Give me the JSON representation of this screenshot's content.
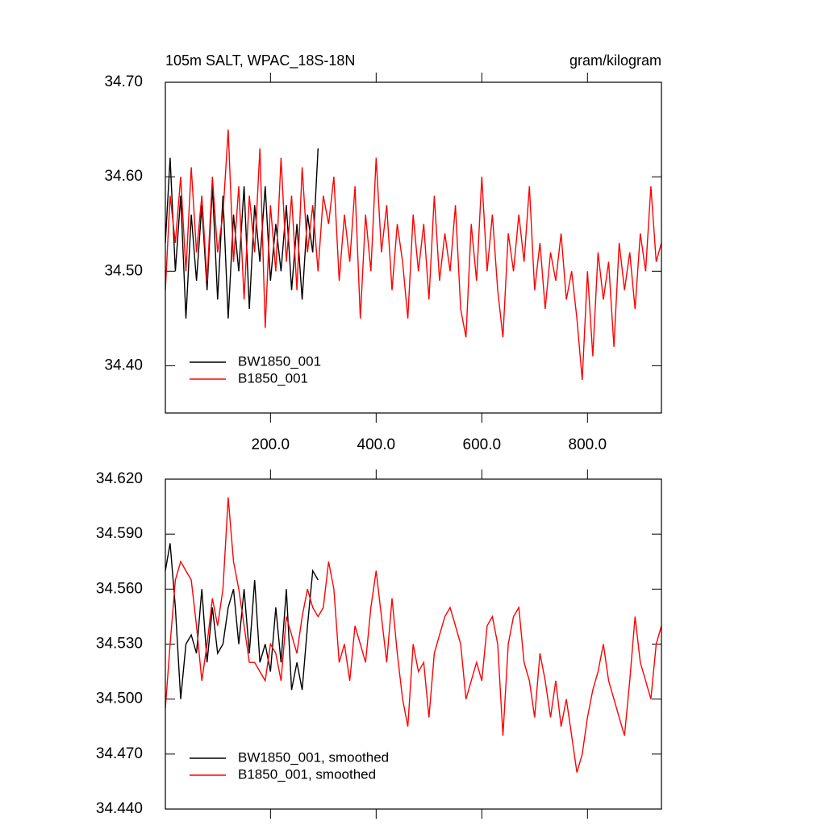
{
  "chart_data": [
    {
      "type": "line",
      "title": "105m SALT, WPAC_18S-18N",
      "units": "gram/kilogram",
      "xlim": [
        1,
        940
      ],
      "ylim": [
        34.35,
        34.7
      ],
      "xticks": [
        {
          "value": 200,
          "label": "200.0"
        },
        {
          "value": 400,
          "label": "400.0"
        },
        {
          "value": 600,
          "label": "600.0"
        },
        {
          "value": 800,
          "label": "800.0"
        }
      ],
      "yticks": [
        {
          "value": 34.4,
          "label": "34.40"
        },
        {
          "value": 34.5,
          "label": "34.50"
        },
        {
          "value": 34.6,
          "label": "34.60"
        },
        {
          "value": 34.7,
          "label": "34.70"
        }
      ],
      "legend": "lower left",
      "series": [
        {
          "name": "BW1850_001",
          "color": "#000000",
          "x": [
            1,
            10,
            20,
            30,
            40,
            50,
            60,
            70,
            80,
            90,
            100,
            110,
            120,
            130,
            140,
            150,
            160,
            170,
            180,
            190,
            200,
            210,
            220,
            230,
            240,
            250,
            260,
            270,
            280,
            290
          ],
          "values": [
            34.53,
            34.62,
            34.5,
            34.58,
            34.45,
            34.56,
            34.49,
            34.57,
            34.48,
            34.59,
            34.47,
            34.58,
            34.45,
            34.56,
            34.5,
            34.59,
            34.46,
            34.57,
            34.51,
            34.59,
            34.49,
            34.55,
            34.5,
            34.57,
            34.48,
            34.55,
            34.47,
            34.56,
            34.52,
            34.63
          ]
        },
        {
          "name": "B1850_001",
          "color": "#ff0000",
          "x": [
            1,
            10,
            20,
            30,
            40,
            50,
            60,
            70,
            80,
            90,
            100,
            110,
            120,
            130,
            140,
            150,
            160,
            170,
            180,
            190,
            200,
            210,
            220,
            230,
            240,
            250,
            260,
            270,
            280,
            290,
            300,
            310,
            320,
            330,
            340,
            350,
            360,
            370,
            380,
            390,
            400,
            410,
            420,
            430,
            440,
            450,
            460,
            470,
            480,
            490,
            500,
            510,
            520,
            530,
            540,
            550,
            560,
            570,
            580,
            590,
            600,
            610,
            620,
            630,
            640,
            650,
            660,
            670,
            680,
            690,
            700,
            710,
            720,
            730,
            740,
            750,
            760,
            770,
            780,
            790,
            800,
            810,
            820,
            830,
            840,
            850,
            860,
            870,
            880,
            890,
            900,
            910,
            920,
            930,
            940
          ],
          "values": [
            34.48,
            34.58,
            34.53,
            34.6,
            34.5,
            34.61,
            34.52,
            34.58,
            34.49,
            34.6,
            34.52,
            34.56,
            34.65,
            34.51,
            34.59,
            34.47,
            34.58,
            34.52,
            34.63,
            34.44,
            34.57,
            34.5,
            34.62,
            34.51,
            34.58,
            34.48,
            34.61,
            34.52,
            34.57,
            34.5,
            34.58,
            34.55,
            34.6,
            34.49,
            34.56,
            34.51,
            34.59,
            34.45,
            34.56,
            34.5,
            34.62,
            34.52,
            34.57,
            34.48,
            34.55,
            34.51,
            34.45,
            34.56,
            34.5,
            34.55,
            34.47,
            34.58,
            34.49,
            34.54,
            34.5,
            34.57,
            34.46,
            34.43,
            34.55,
            34.49,
            34.6,
            34.5,
            34.56,
            34.48,
            34.43,
            34.54,
            34.5,
            34.56,
            34.51,
            34.59,
            34.48,
            34.53,
            34.46,
            34.52,
            34.49,
            34.54,
            34.47,
            34.5,
            34.45,
            34.385,
            34.5,
            34.41,
            34.52,
            34.47,
            34.51,
            34.42,
            34.53,
            34.48,
            34.52,
            34.46,
            34.54,
            34.5,
            34.59,
            34.51,
            34.53
          ]
        }
      ]
    },
    {
      "type": "line",
      "xlim": [
        1,
        940
      ],
      "ylim": [
        34.44,
        34.62
      ],
      "xticks": [
        200,
        400,
        600,
        800
      ],
      "xtick_labels": false,
      "yticks": [
        {
          "value": 34.44,
          "label": "34.440"
        },
        {
          "value": 34.47,
          "label": "34.470"
        },
        {
          "value": 34.5,
          "label": "34.500"
        },
        {
          "value": 34.53,
          "label": "34.530"
        },
        {
          "value": 34.56,
          "label": "34.560"
        },
        {
          "value": 34.59,
          "label": "34.590"
        },
        {
          "value": 34.62,
          "label": "34.620"
        }
      ],
      "legend": "lower left",
      "series": [
        {
          "name": "BW1850_001, smoothed",
          "color": "#000000",
          "x": [
            1,
            10,
            20,
            30,
            40,
            50,
            60,
            70,
            80,
            90,
            100,
            110,
            120,
            130,
            140,
            150,
            160,
            170,
            180,
            190,
            200,
            210,
            220,
            230,
            240,
            250,
            260,
            270,
            280,
            290
          ],
          "values": [
            34.57,
            34.585,
            34.55,
            34.5,
            34.53,
            34.535,
            34.525,
            34.56,
            34.52,
            34.55,
            34.525,
            34.53,
            34.55,
            34.56,
            34.53,
            34.56,
            34.525,
            34.565,
            34.52,
            34.53,
            34.515,
            34.55,
            34.52,
            34.56,
            34.505,
            34.52,
            34.505,
            34.54,
            34.57,
            34.565
          ]
        },
        {
          "name": "B1850_001, smoothed",
          "color": "#ff0000",
          "x": [
            1,
            10,
            20,
            30,
            40,
            50,
            60,
            70,
            80,
            90,
            100,
            110,
            120,
            130,
            140,
            150,
            160,
            170,
            180,
            190,
            200,
            210,
            220,
            230,
            240,
            250,
            260,
            270,
            280,
            290,
            300,
            310,
            320,
            330,
            340,
            350,
            360,
            370,
            380,
            390,
            400,
            410,
            420,
            430,
            440,
            450,
            460,
            470,
            480,
            490,
            500,
            510,
            520,
            530,
            540,
            550,
            560,
            570,
            580,
            590,
            600,
            610,
            620,
            630,
            640,
            650,
            660,
            670,
            680,
            690,
            700,
            710,
            720,
            730,
            740,
            750,
            760,
            770,
            780,
            790,
            800,
            810,
            820,
            830,
            840,
            850,
            860,
            870,
            880,
            890,
            900,
            910,
            920,
            930,
            940
          ],
          "values": [
            34.495,
            34.53,
            34.565,
            34.575,
            34.57,
            34.565,
            34.54,
            34.51,
            34.53,
            34.555,
            34.54,
            34.56,
            34.61,
            34.575,
            34.56,
            34.54,
            34.52,
            34.52,
            34.515,
            34.51,
            34.53,
            34.525,
            34.51,
            34.545,
            34.535,
            34.525,
            34.545,
            34.56,
            34.55,
            34.545,
            34.55,
            34.575,
            34.56,
            34.52,
            34.53,
            34.51,
            34.54,
            34.53,
            34.52,
            34.55,
            34.57,
            34.545,
            34.52,
            34.555,
            34.525,
            34.5,
            34.485,
            34.53,
            34.515,
            34.52,
            34.49,
            34.525,
            34.535,
            34.545,
            34.55,
            34.54,
            34.53,
            34.5,
            34.51,
            34.52,
            34.51,
            34.54,
            34.545,
            34.53,
            34.48,
            34.53,
            34.545,
            34.55,
            34.52,
            34.51,
            34.49,
            34.525,
            34.51,
            34.49,
            34.51,
            34.485,
            34.5,
            34.48,
            34.46,
            34.47,
            34.49,
            34.505,
            34.515,
            34.53,
            34.51,
            34.5,
            34.49,
            34.48,
            34.51,
            34.545,
            34.52,
            34.51,
            34.5,
            34.53,
            34.54
          ]
        }
      ]
    }
  ]
}
